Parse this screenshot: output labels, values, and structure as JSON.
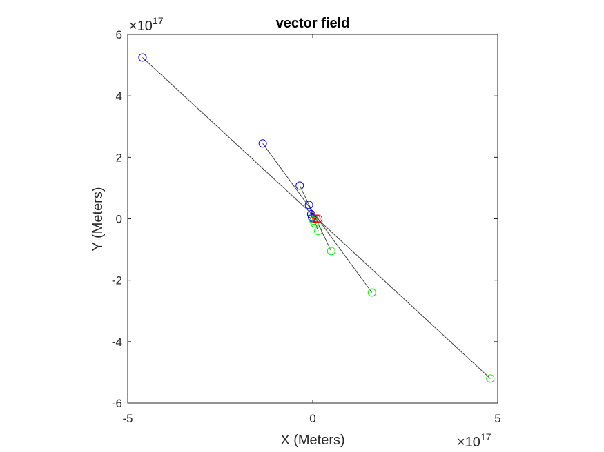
{
  "chart_data": {
    "type": "scatter",
    "title": "vector field",
    "xlabel": "X (Meters)",
    "ylabel": "Y (Meters)",
    "x_exponent": {
      "base": "10",
      "power": "17"
    },
    "y_exponent": {
      "base": "10",
      "power": "17"
    },
    "xlim": [
      -5,
      5
    ],
    "ylim": [
      -6,
      6
    ],
    "xticks": [
      -5,
      0,
      5
    ],
    "xtick_labels": [
      "-5",
      "0",
      "5"
    ],
    "yticks": [
      -6,
      -4,
      -2,
      0,
      2,
      4,
      6
    ],
    "ytick_labels": [
      "-6",
      "-4",
      "-2",
      "0",
      "2",
      "4",
      "6"
    ],
    "grid": false,
    "colors": {
      "blue": "#0000ff",
      "green": "#00ff00",
      "red": "#ff0000",
      "line": "#404040",
      "axis": "#262626"
    },
    "segments": [
      {
        "from": [
          -4.6,
          5.25
        ],
        "to": [
          4.8,
          -5.2
        ]
      },
      {
        "from": [
          -1.35,
          2.45
        ],
        "to": [
          1.6,
          -2.4
        ]
      },
      {
        "from": [
          -0.35,
          1.08
        ],
        "to": [
          0.5,
          -1.05
        ]
      },
      {
        "from": [
          -0.1,
          0.45
        ],
        "to": [
          0.15,
          -0.4
        ]
      },
      {
        "from": [
          -0.04,
          0.15
        ],
        "to": [
          0.05,
          -0.15
        ]
      }
    ],
    "series": [
      {
        "color": "blue",
        "points": [
          [
            -4.6,
            5.25
          ],
          [
            -1.35,
            2.45
          ],
          [
            -0.35,
            1.08
          ],
          [
            -0.1,
            0.45
          ],
          [
            -0.04,
            0.15
          ],
          [
            -0.02,
            0.06
          ],
          [
            -0.01,
            0.02
          ]
        ]
      },
      {
        "color": "green",
        "points": [
          [
            4.8,
            -5.2
          ],
          [
            1.6,
            -2.4
          ],
          [
            0.5,
            -1.05
          ],
          [
            0.15,
            -0.4
          ],
          [
            0.05,
            -0.15
          ],
          [
            0.02,
            -0.06
          ]
        ]
      },
      {
        "color": "red",
        "points": [
          [
            0.15,
            0.0
          ],
          [
            0.1,
            0.0
          ],
          [
            0.05,
            0.0
          ]
        ]
      }
    ]
  }
}
